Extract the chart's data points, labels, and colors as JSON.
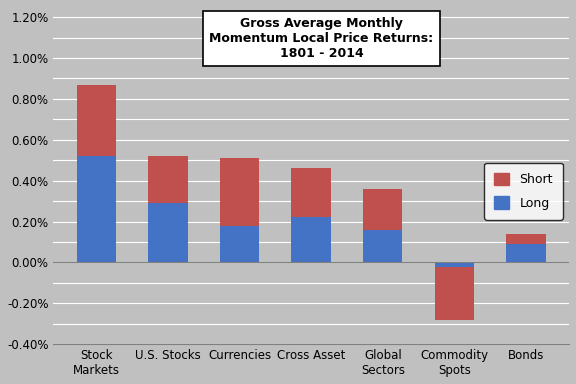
{
  "categories": [
    "Stock\nMarkets",
    "U.S. Stocks",
    "Currencies",
    "Cross Asset",
    "Global\nSectors",
    "Commodity\nSpots",
    "Bonds"
  ],
  "long_values": [
    0.0052,
    0.0029,
    0.0018,
    0.0022,
    0.0016,
    -0.0002,
    0.0009
  ],
  "short_values": [
    0.0035,
    0.0023,
    0.0033,
    0.0024,
    0.002,
    -0.0026,
    0.0005
  ],
  "long_color": "#4472C4",
  "short_color": "#C0504D",
  "bg_color": "#C0C0C0",
  "ylim": [
    -0.004,
    0.0125
  ],
  "yticks": [
    -0.004,
    -0.003,
    -0.002,
    -0.001,
    0.0,
    0.001,
    0.002,
    0.003,
    0.004,
    0.005,
    0.006,
    0.007,
    0.008,
    0.009,
    0.01,
    0.011,
    0.012
  ],
  "ytick_labels": [
    "-0.40%",
    "",
    "-0.20%",
    "",
    "0.00%",
    "",
    "0.20%",
    "",
    "0.40%",
    "",
    "0.60%",
    "",
    "0.80%",
    "",
    "1.00%",
    "",
    "1.20%"
  ],
  "title_line1": "Gross Average Monthly",
  "title_line2": "Momentum Local ",
  "title_line3": "1801 - 2014",
  "title_underline_word": "Price",
  "legend_short": "Short",
  "legend_long": "Long"
}
